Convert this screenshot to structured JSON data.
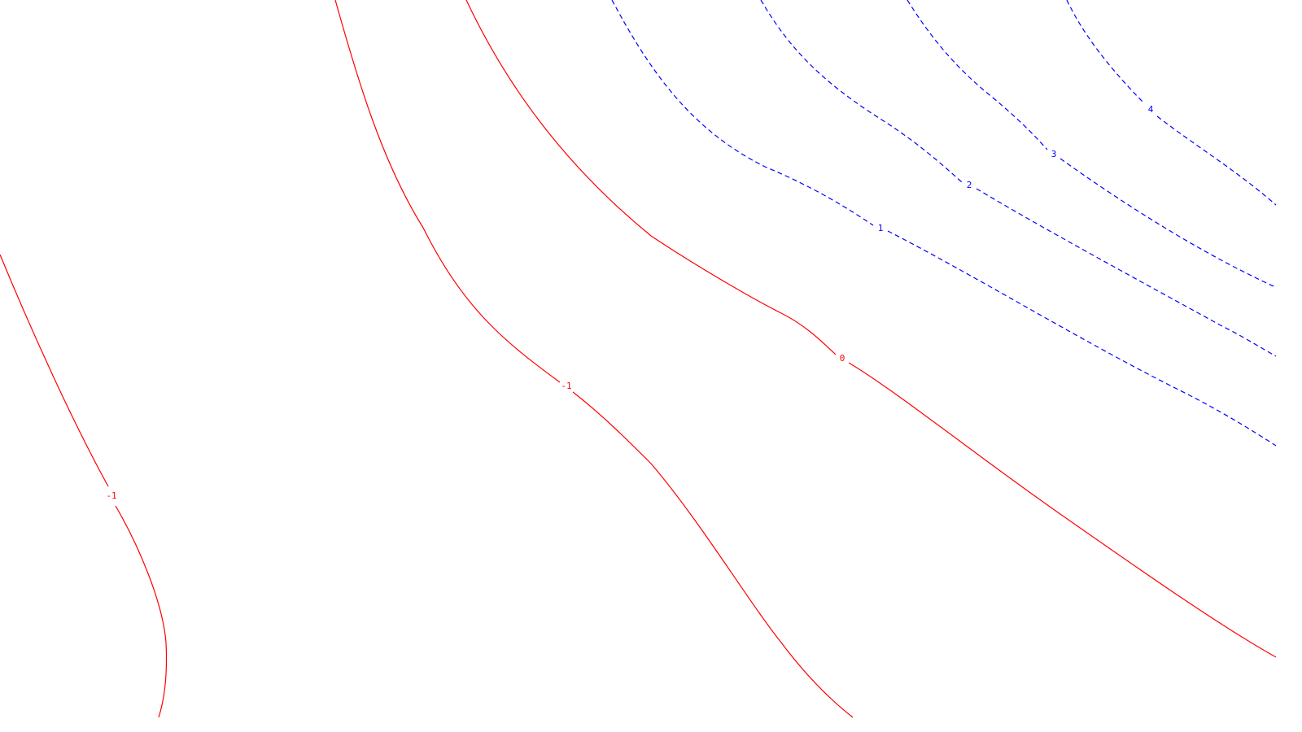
{
  "map": {
    "colors": {
      "background": "#ffffff",
      "negative": "#ff0000",
      "positive": "#0000ff"
    },
    "contours": [
      {
        "id": "neg-1-west",
        "level": -1,
        "label": "-1",
        "style": "solid"
      },
      {
        "id": "neg-1-central",
        "level": -1,
        "label": "-1",
        "style": "solid"
      },
      {
        "id": "zero",
        "level": 0,
        "label": "0",
        "style": "solid"
      },
      {
        "id": "pos-1",
        "level": 1,
        "label": "1",
        "style": "dashed"
      },
      {
        "id": "pos-2",
        "level": 2,
        "label": "2",
        "style": "dashed"
      },
      {
        "id": "pos-3",
        "level": 3,
        "label": "3",
        "style": "dashed"
      },
      {
        "id": "pos-4",
        "level": 4,
        "label": "4",
        "style": "dashed"
      }
    ]
  }
}
